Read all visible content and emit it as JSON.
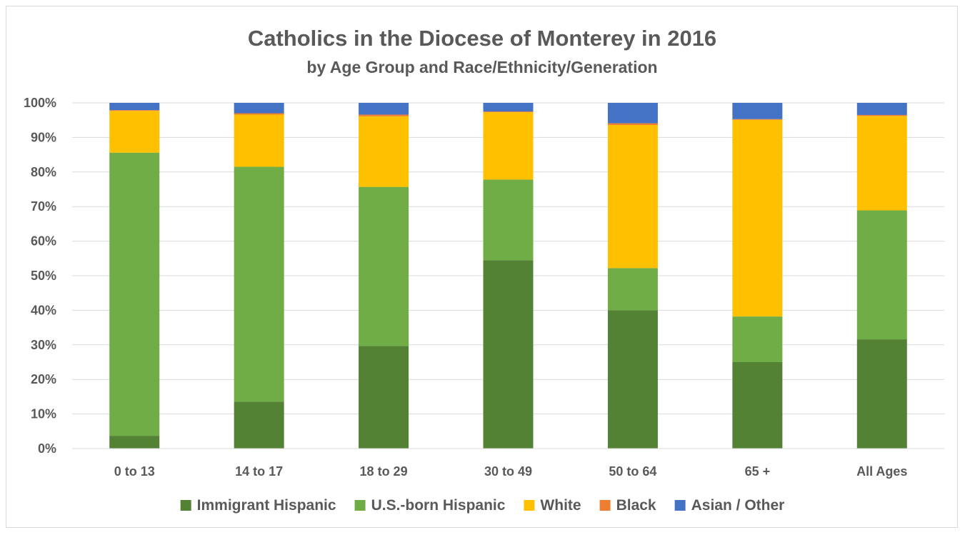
{
  "chart_data": {
    "type": "bar",
    "stacked": true,
    "title": "Catholics in the Diocese of Monterey in 2016",
    "subtitle": "by Age Group and Race/Ethnicity/Generation",
    "xlabel": "",
    "ylabel": "",
    "ylim": [
      0,
      100
    ],
    "y_ticks": [
      "0%",
      "10%",
      "20%",
      "30%",
      "40%",
      "50%",
      "60%",
      "70%",
      "80%",
      "90%",
      "100%"
    ],
    "grid": true,
    "legend_position": "bottom",
    "categories": [
      "0 to 13",
      "14 to 17",
      "18 to 29",
      "30 to 49",
      "50 to 64",
      "65 +",
      "All Ages"
    ],
    "series": [
      {
        "name": "Immigrant Hispanic",
        "color": "#548235",
        "values": [
          3.7,
          13.6,
          29.7,
          54.5,
          40.0,
          25.0,
          31.6
        ]
      },
      {
        "name": "U.S.-born Hispanic",
        "color": "#70ad47",
        "values": [
          81.9,
          67.9,
          46.0,
          23.3,
          12.2,
          13.2,
          37.3
        ]
      },
      {
        "name": "White",
        "color": "#ffc000",
        "values": [
          12.1,
          15.1,
          20.4,
          19.5,
          41.4,
          56.9,
          27.3
        ]
      },
      {
        "name": "Black",
        "color": "#ed7d31",
        "values": [
          0.2,
          0.4,
          0.5,
          0.2,
          0.5,
          0.2,
          0.3
        ]
      },
      {
        "name": "Asian / Other",
        "color": "#4472c4",
        "values": [
          2.1,
          3.0,
          3.4,
          2.5,
          5.9,
          4.7,
          3.5
        ]
      }
    ]
  }
}
